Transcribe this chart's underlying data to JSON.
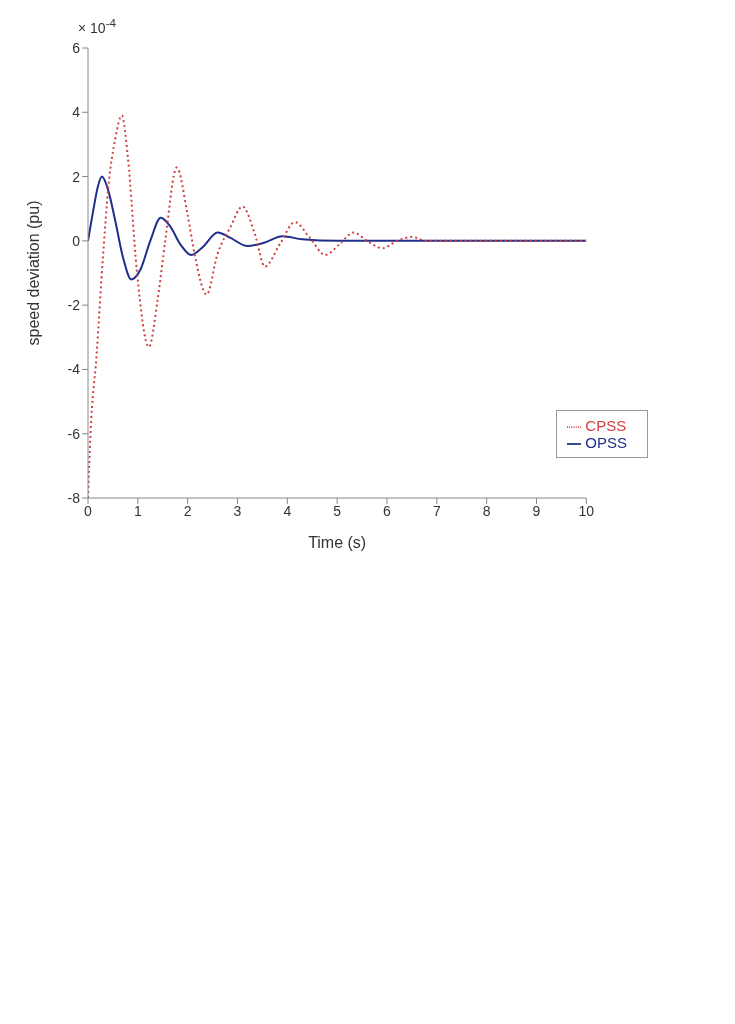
{
  "chart_data": {
    "type": "line",
    "xlabel": "Time (s)",
    "ylabel": "speed deviation (pu)",
    "annotations": [
      "× 10$^{-4}$"
    ],
    "xlim": [
      0,
      10
    ],
    "xticks": [
      0,
      1,
      2,
      3,
      4,
      5,
      6,
      7,
      8,
      9,
      10
    ],
    "ylim": [
      -8,
      6
    ],
    "yticks": [
      -8,
      -6,
      -4,
      -2,
      0,
      2,
      4,
      6
    ],
    "grid": false,
    "legend": "bottom right",
    "marker": "none",
    "series": [
      {
        "name": "OPSS",
        "color": "#1f2f8a",
        "line_style": "solid",
        "x": [
          0,
          0.1,
          0.2,
          0.28,
          0.4,
          0.55,
          0.7,
          0.87,
          1.05,
          1.25,
          1.46,
          1.65,
          1.85,
          2.07,
          2.3,
          2.6,
          2.85,
          3.2,
          3.55,
          3.9,
          4.3,
          5,
          6,
          7,
          8,
          9,
          10
        ],
        "values": [
          0,
          0.9,
          1.7,
          2.0,
          1.6,
          0.6,
          -0.5,
          -1.2,
          -0.9,
          0,
          0.72,
          0.45,
          -0.1,
          -0.44,
          -0.2,
          0.26,
          0.1,
          -0.16,
          -0.05,
          0.14,
          0.05,
          0,
          0,
          0,
          0,
          0,
          0
        ]
      },
      {
        "name": "CPSS",
        "color": "#d04040",
        "line_style": "dotted",
        "x": [
          0,
          0.05,
          0.17,
          0.3,
          0.41,
          0.55,
          0.68,
          0.8,
          0.98,
          1.22,
          1.4,
          1.55,
          1.78,
          2.0,
          2.15,
          2.38,
          2.6,
          2.85,
          3.1,
          3.35,
          3.55,
          3.85,
          4.15,
          4.45,
          4.76,
          5.05,
          5.33,
          5.6,
          5.91,
          6.2,
          6.5,
          6.8,
          7,
          8,
          9,
          10
        ],
        "values": [
          -8,
          -6,
          -3.6,
          -0.5,
          1.7,
          3.2,
          3.9,
          2.6,
          -0.93,
          -3.3,
          -1.8,
          0,
          2.28,
          0.8,
          -0.5,
          -1.67,
          -0.4,
          0.4,
          1.07,
          0.2,
          -0.8,
          -0.1,
          0.58,
          0.1,
          -0.44,
          -0.1,
          0.26,
          0,
          -0.23,
          0,
          0.12,
          0,
          0,
          0,
          0,
          0
        ]
      }
    ]
  }
}
